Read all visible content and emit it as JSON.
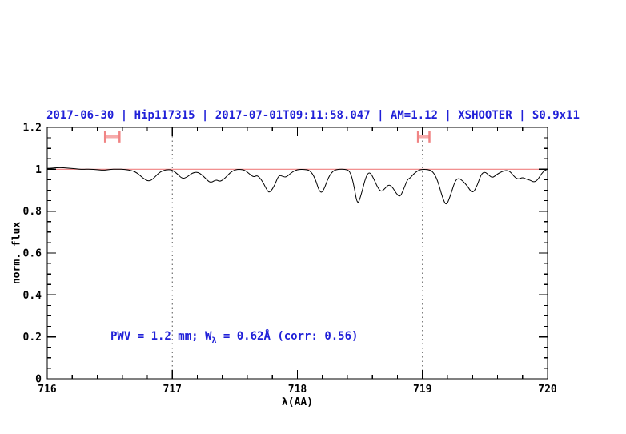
{
  "title": {
    "text": "2017-06-30 | Hip117315 | 2017-07-01T09:11:58.047 | AM=1.12 | XSHOOTER | S0.9x11"
  },
  "annotation": {
    "prefix": "PWV = 1.2 mm; W",
    "subscript": "λ",
    "suffix": " = 0.62Å (corr: 0.56)"
  },
  "chart_data": {
    "type": "line",
    "title": "2017-06-30 | Hip117315 | 2017-07-01T09:11:58.047 | AM=1.12 | XSHOOTER | S0.9x11",
    "xlabel": "λ(AA)",
    "ylabel": "norm. flux",
    "xlim": [
      716,
      720
    ],
    "ylim": [
      0,
      1.2
    ],
    "grid": false,
    "x_major_ticks": [
      716,
      717,
      718,
      719,
      720
    ],
    "x_tick_labels": [
      "716",
      "717",
      "718",
      "719",
      "720"
    ],
    "x_minor_step": 0.2,
    "y_major_ticks": [
      0,
      0.2,
      0.4,
      0.6,
      0.8,
      1,
      1.2
    ],
    "y_tick_labels": [
      "0",
      "0.2",
      "0.4",
      "0.6",
      "0.8",
      "1",
      "1.2"
    ],
    "y_minor_step": 0.05,
    "dotted_vlines": [
      717,
      719
    ],
    "continuum_line": {
      "y": 1.0
    },
    "range_markers": [
      {
        "x_center": 716.52,
        "half_width": 0.058,
        "y": 1.155,
        "cap_half_height": 0.027
      },
      {
        "x_center": 719.01,
        "half_width": 0.046,
        "y": 1.155,
        "cap_half_height": 0.027
      }
    ],
    "colors": {
      "spectrum": "#000000",
      "continuum": "#f08080",
      "marker_cap": "#f08484",
      "marker_bar": "#f6abab",
      "dotted": "#555555",
      "text_blue": "#2020d8",
      "axis": "#000000"
    },
    "series": [
      {
        "name": "telluric-spectrum",
        "points": [
          [
            716.0,
            1.004
          ],
          [
            716.05,
            1.006
          ],
          [
            716.1,
            1.008
          ],
          [
            716.16,
            1.006
          ],
          [
            716.22,
            1.003
          ],
          [
            716.28,
            0.999
          ],
          [
            716.34,
            1.001
          ],
          [
            716.4,
            0.998
          ],
          [
            716.45,
            0.995
          ],
          [
            716.5,
            0.999
          ],
          [
            716.56,
            1.001
          ],
          [
            716.62,
            0.999
          ],
          [
            716.68,
            0.994
          ],
          [
            716.72,
            0.982
          ],
          [
            716.76,
            0.96
          ],
          [
            716.81,
            0.941
          ],
          [
            716.85,
            0.955
          ],
          [
            716.89,
            0.982
          ],
          [
            716.93,
            0.995
          ],
          [
            716.97,
            0.999
          ],
          [
            717.0,
            0.996
          ],
          [
            717.04,
            0.978
          ],
          [
            717.08,
            0.954
          ],
          [
            717.12,
            0.963
          ],
          [
            717.16,
            0.982
          ],
          [
            717.2,
            0.988
          ],
          [
            717.24,
            0.972
          ],
          [
            717.28,
            0.947
          ],
          [
            717.31,
            0.935
          ],
          [
            717.35,
            0.951
          ],
          [
            717.38,
            0.94
          ],
          [
            717.42,
            0.956
          ],
          [
            717.46,
            0.983
          ],
          [
            717.5,
            0.998
          ],
          [
            717.54,
            1.0
          ],
          [
            717.58,
            0.996
          ],
          [
            717.62,
            0.976
          ],
          [
            717.65,
            0.962
          ],
          [
            717.68,
            0.972
          ],
          [
            717.72,
            0.944
          ],
          [
            717.76,
            0.896
          ],
          [
            717.78,
            0.888
          ],
          [
            717.82,
            0.925
          ],
          [
            717.85,
            0.972
          ],
          [
            717.88,
            0.967
          ],
          [
            717.91,
            0.961
          ],
          [
            717.94,
            0.978
          ],
          [
            717.98,
            0.995
          ],
          [
            718.02,
            1.0
          ],
          [
            718.06,
            0.999
          ],
          [
            718.1,
            0.995
          ],
          [
            718.14,
            0.96
          ],
          [
            718.18,
            0.885
          ],
          [
            718.21,
            0.898
          ],
          [
            718.25,
            0.965
          ],
          [
            718.29,
            0.995
          ],
          [
            718.33,
            1.0
          ],
          [
            718.38,
            1.0
          ],
          [
            718.42,
            0.993
          ],
          [
            718.45,
            0.93
          ],
          [
            718.48,
            0.825
          ],
          [
            718.51,
            0.878
          ],
          [
            718.55,
            0.97
          ],
          [
            718.58,
            0.988
          ],
          [
            718.61,
            0.955
          ],
          [
            718.64,
            0.915
          ],
          [
            718.67,
            0.891
          ],
          [
            718.7,
            0.908
          ],
          [
            718.73,
            0.928
          ],
          [
            718.76,
            0.915
          ],
          [
            718.79,
            0.885
          ],
          [
            718.82,
            0.866
          ],
          [
            718.85,
            0.905
          ],
          [
            718.88,
            0.952
          ],
          [
            718.9,
            0.957
          ],
          [
            718.93,
            0.978
          ],
          [
            718.97,
            0.996
          ],
          [
            719.0,
            1.0
          ],
          [
            719.04,
            0.999
          ],
          [
            719.08,
            0.992
          ],
          [
            719.12,
            0.95
          ],
          [
            719.16,
            0.865
          ],
          [
            719.19,
            0.824
          ],
          [
            719.22,
            0.868
          ],
          [
            719.26,
            0.945
          ],
          [
            719.29,
            0.958
          ],
          [
            719.32,
            0.945
          ],
          [
            719.36,
            0.92
          ],
          [
            719.4,
            0.882
          ],
          [
            719.44,
            0.925
          ],
          [
            719.47,
            0.978
          ],
          [
            719.5,
            0.988
          ],
          [
            719.53,
            0.972
          ],
          [
            719.56,
            0.958
          ],
          [
            719.6,
            0.978
          ],
          [
            719.64,
            0.99
          ],
          [
            719.67,
            0.995
          ],
          [
            719.7,
            0.99
          ],
          [
            719.74,
            0.96
          ],
          [
            719.77,
            0.952
          ],
          [
            719.8,
            0.962
          ],
          [
            719.83,
            0.952
          ],
          [
            719.86,
            0.948
          ],
          [
            719.89,
            0.938
          ],
          [
            719.92,
            0.948
          ],
          [
            719.95,
            0.978
          ],
          [
            719.98,
            0.996
          ],
          [
            720.0,
            1.0
          ]
        ]
      }
    ]
  }
}
